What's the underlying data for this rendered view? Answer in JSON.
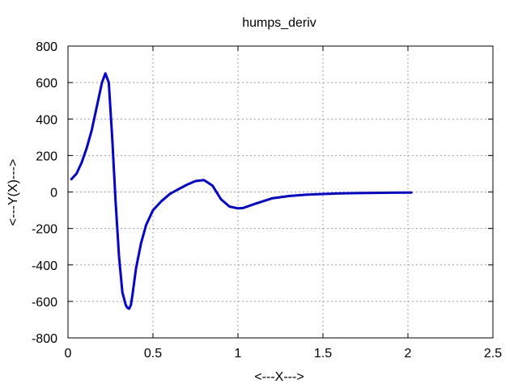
{
  "chart_data": {
    "type": "line",
    "title": "humps_deriv",
    "xlabel": "<---X--->",
    "ylabel": "<---Y(X)--->",
    "xlim": [
      0,
      2.5
    ],
    "ylim": [
      -800,
      800
    ],
    "xticks": [
      "0",
      "0.5",
      "1",
      "1.5",
      "2",
      "2.5"
    ],
    "yticks": [
      "-800",
      "-600",
      "-400",
      "-200",
      "0",
      "200",
      "400",
      "600",
      "800"
    ],
    "grid": true,
    "series": [
      {
        "color": "#0000e0",
        "x": [
          0.02,
          0.05,
          0.08,
          0.11,
          0.14,
          0.17,
          0.2,
          0.22,
          0.24,
          0.26,
          0.28,
          0.3,
          0.32,
          0.34,
          0.35,
          0.36,
          0.37,
          0.38,
          0.4,
          0.43,
          0.46,
          0.5,
          0.55,
          0.6,
          0.65,
          0.7,
          0.75,
          0.8,
          0.85,
          0.9,
          0.95,
          1.0,
          1.03,
          1.06,
          1.1,
          1.15,
          1.2,
          1.3,
          1.4,
          1.5,
          1.6,
          1.7,
          1.8,
          1.9,
          2.0,
          2.02
        ],
        "y": [
          70,
          100,
          160,
          240,
          340,
          470,
          600,
          650,
          600,
          300,
          -50,
          -350,
          -550,
          -620,
          -635,
          -640,
          -620,
          -560,
          -420,
          -280,
          -180,
          -100,
          -50,
          -10,
          15,
          40,
          60,
          65,
          35,
          -40,
          -80,
          -90,
          -88,
          -78,
          -65,
          -50,
          -35,
          -22,
          -15,
          -11,
          -8,
          -6,
          -5,
          -4,
          -3,
          -3
        ]
      }
    ]
  }
}
